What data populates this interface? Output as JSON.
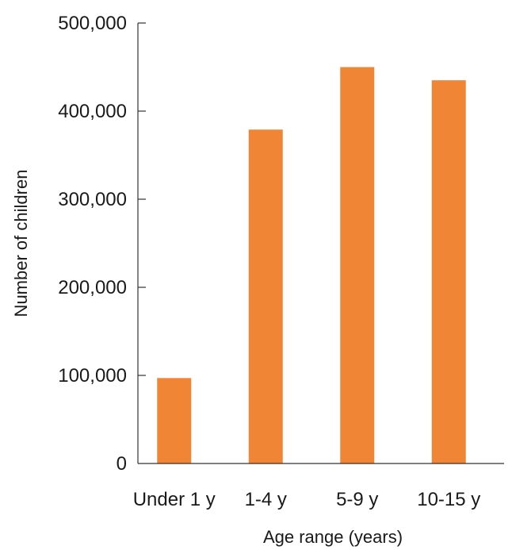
{
  "chart_data": {
    "type": "bar",
    "title": "",
    "xlabel": "Age range (years)",
    "ylabel": "Number of children",
    "categories": [
      "Under 1 y",
      "1-4 y",
      "5-9 y",
      "10-15 y"
    ],
    "values": [
      97000,
      379000,
      450000,
      435000
    ],
    "ylim": [
      0,
      500000
    ],
    "y_ticks": [
      0,
      100000,
      200000,
      300000,
      400000,
      500000
    ],
    "y_tick_labels": [
      "0",
      "100,000",
      "200,000",
      "300,000",
      "400,000",
      "500,000"
    ],
    "bar_color": "#f08535",
    "grid": false,
    "legend": "none"
  }
}
